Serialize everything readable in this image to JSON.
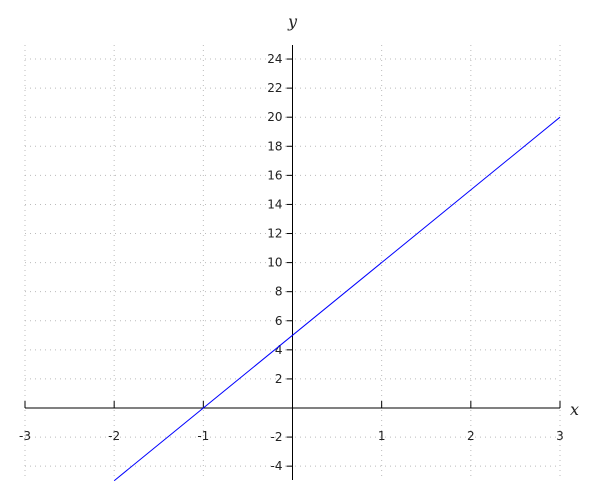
{
  "chart_data": {
    "type": "line",
    "title": "",
    "xlabel": "x",
    "ylabel": "y",
    "xlim": [
      -3,
      3
    ],
    "ylim": [
      -5,
      25
    ],
    "grid": true,
    "x_ticks": [
      -3,
      -2,
      -1,
      1,
      2,
      3
    ],
    "y_ticks": [
      -4,
      -2,
      2,
      4,
      6,
      8,
      10,
      12,
      14,
      16,
      18,
      20,
      22,
      24
    ],
    "series": [
      {
        "x": [
          -2,
          3
        ],
        "y": [
          -5,
          20
        ],
        "color": "#0000ff"
      }
    ]
  }
}
